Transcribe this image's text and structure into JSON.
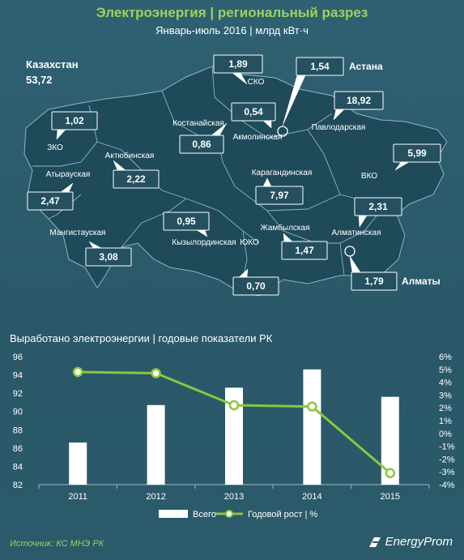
{
  "map": {
    "title": "Электроэнергия | региональный разрез",
    "subtitle": "Январь-июль 2016 | млрд кВт·ч",
    "total_label": "Казахстан",
    "total_value": "53,72",
    "regions": [
      {
        "name": "СКО",
        "value": "1,89"
      },
      {
        "name": "Астана",
        "value": "1,54"
      },
      {
        "name": "Акмолинская",
        "value": "0,54"
      },
      {
        "name": "Павлодарская",
        "value": "18,92"
      },
      {
        "name": "Костанайская",
        "value": "0,86"
      },
      {
        "name": "ЗКО",
        "value": "1,02"
      },
      {
        "name": "Актюбинская",
        "value": "2,22"
      },
      {
        "name": "Атырауская",
        "value": "2,47"
      },
      {
        "name": "Карагандинская",
        "value": "7,97"
      },
      {
        "name": "ВКО",
        "value": "5,99"
      },
      {
        "name": "Мангистауская",
        "value": "3,08"
      },
      {
        "name": "Кызылординская",
        "value": "0,95"
      },
      {
        "name": "Алматинская",
        "value": "2,31"
      },
      {
        "name": "Жамбылская",
        "value": "1,47"
      },
      {
        "name": "ЮКО",
        "value": "0,70"
      },
      {
        "name": "Алматы",
        "value": "1,79"
      }
    ]
  },
  "chart_data": {
    "type": "bar",
    "title": "Выработано электроэнергии | годовые показатели РК",
    "categories": [
      "2011",
      "2012",
      "2013",
      "2014",
      "2015"
    ],
    "series": [
      {
        "name": "Всего",
        "type": "bar",
        "axis": "left",
        "values": [
          86.6,
          90.7,
          92.6,
          94.6,
          91.6
        ]
      },
      {
        "name": "Годовой рост | %",
        "type": "line",
        "axis": "right",
        "values": [
          4.8,
          4.7,
          2.2,
          2.1,
          -3.1
        ]
      }
    ],
    "ylim": [
      82,
      96
    ],
    "yticks": [
      "82",
      "84",
      "86",
      "88",
      "90",
      "92",
      "94",
      "96"
    ],
    "y2lim": [
      -4,
      6
    ],
    "y2ticks": [
      "-4%",
      "-3%",
      "-2%",
      "-1%",
      "0%",
      "1%",
      "2%",
      "3%",
      "4%",
      "5%",
      "6%"
    ],
    "legend_position": "bottom",
    "grid": false,
    "colors": {
      "bar": "#ffffff",
      "line": "#8cc63f"
    }
  },
  "footer": {
    "source": "Источник: КС МНЭ РК",
    "brand": "EnergyProm"
  }
}
